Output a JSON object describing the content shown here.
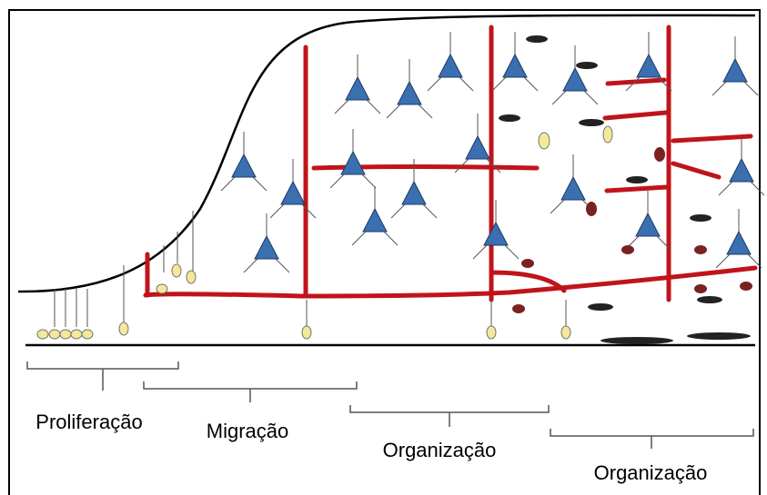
{
  "stages": [
    {
      "label": "Proliferação"
    },
    {
      "label": "Migração"
    },
    {
      "label": "Organização"
    },
    {
      "label": "Organização"
    }
  ]
}
